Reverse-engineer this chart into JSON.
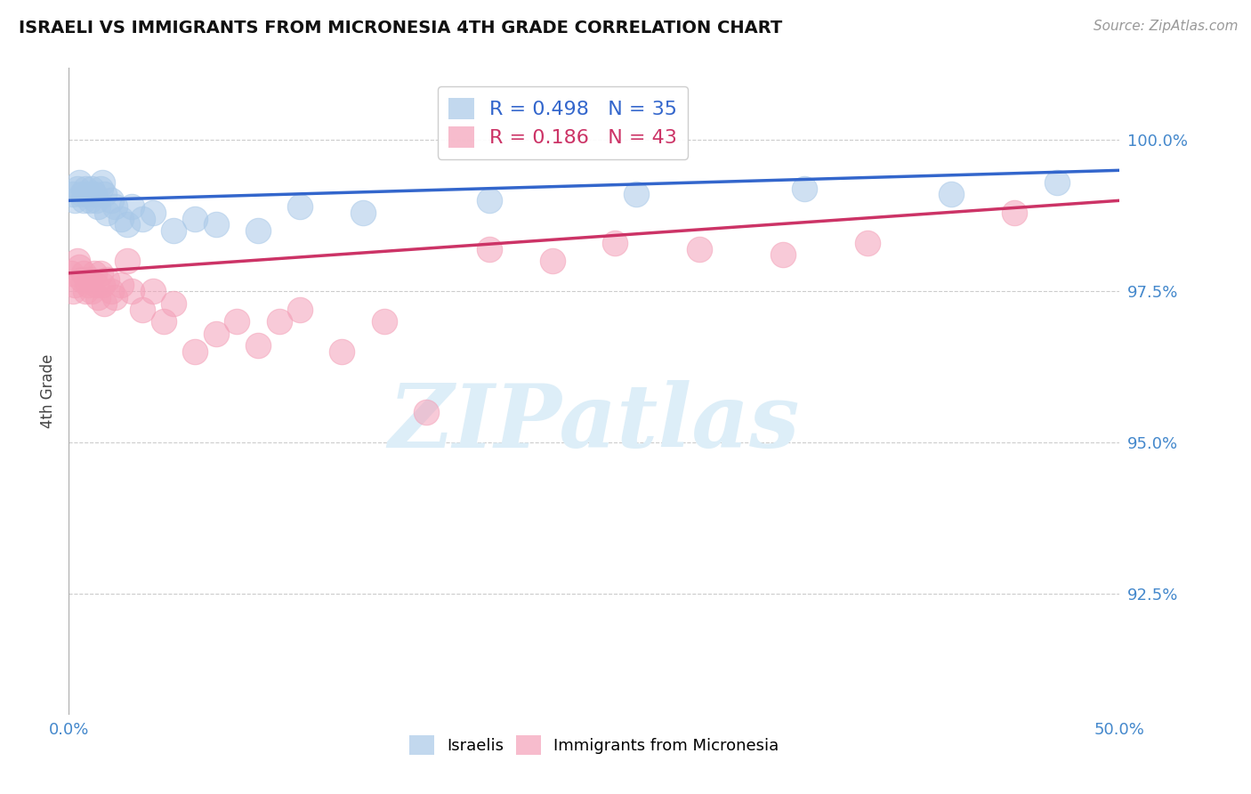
{
  "title": "ISRAELI VS IMMIGRANTS FROM MICRONESIA 4TH GRADE CORRELATION CHART",
  "source": "Source: ZipAtlas.com",
  "ylabel": "4th Grade",
  "xlim": [
    0.0,
    50.0
  ],
  "ylim": [
    90.5,
    101.2
  ],
  "yticks": [
    92.5,
    95.0,
    97.5,
    100.0
  ],
  "xticks": [
    0.0,
    10.0,
    20.0,
    30.0,
    40.0,
    50.0
  ],
  "xtick_labels": [
    "0.0%",
    "",
    "",
    "",
    "",
    "50.0%"
  ],
  "ytick_labels": [
    "92.5%",
    "95.0%",
    "97.5%",
    "100.0%"
  ],
  "blue_R": 0.498,
  "blue_N": 35,
  "pink_R": 0.186,
  "pink_N": 43,
  "blue_color": "#a8c8e8",
  "pink_color": "#f4a0b8",
  "blue_line_color": "#3366cc",
  "pink_line_color": "#cc3366",
  "background_color": "#ffffff",
  "watermark": "ZIPatlas",
  "watermark_color": "#ddeef8",
  "blue_x": [
    0.2,
    0.3,
    0.4,
    0.5,
    0.6,
    0.7,
    0.8,
    0.9,
    1.0,
    1.1,
    1.2,
    1.3,
    1.4,
    1.5,
    1.6,
    1.7,
    1.8,
    2.0,
    2.2,
    2.5,
    2.8,
    3.0,
    3.5,
    4.0,
    5.0,
    6.0,
    7.0,
    9.0,
    11.0,
    14.0,
    20.0,
    27.0,
    35.0,
    42.0,
    47.0
  ],
  "blue_y": [
    99.1,
    99.0,
    99.2,
    99.3,
    99.1,
    99.0,
    99.2,
    99.1,
    99.0,
    99.2,
    99.1,
    99.0,
    98.9,
    99.2,
    99.3,
    99.1,
    98.8,
    99.0,
    98.9,
    98.7,
    98.6,
    98.9,
    98.7,
    98.8,
    98.5,
    98.7,
    98.6,
    98.5,
    98.9,
    98.8,
    99.0,
    99.1,
    99.2,
    99.1,
    99.3
  ],
  "pink_x": [
    0.1,
    0.2,
    0.3,
    0.4,
    0.5,
    0.6,
    0.7,
    0.8,
    0.9,
    1.0,
    1.1,
    1.2,
    1.3,
    1.4,
    1.5,
    1.6,
    1.7,
    1.8,
    2.0,
    2.2,
    2.5,
    2.8,
    3.0,
    3.5,
    4.0,
    4.5,
    5.0,
    6.0,
    7.0,
    8.0,
    9.0,
    10.0,
    11.0,
    13.0,
    15.0,
    17.0,
    20.0,
    23.0,
    26.0,
    30.0,
    34.0,
    38.0,
    45.0
  ],
  "pink_y": [
    97.8,
    97.5,
    97.6,
    98.0,
    97.9,
    97.7,
    97.8,
    97.5,
    97.6,
    97.7,
    97.5,
    97.8,
    97.6,
    97.4,
    97.8,
    97.6,
    97.3,
    97.7,
    97.5,
    97.4,
    97.6,
    98.0,
    97.5,
    97.2,
    97.5,
    97.0,
    97.3,
    96.5,
    96.8,
    97.0,
    96.6,
    97.0,
    97.2,
    96.5,
    97.0,
    95.5,
    98.2,
    98.0,
    98.3,
    98.2,
    98.1,
    98.3,
    98.8
  ]
}
